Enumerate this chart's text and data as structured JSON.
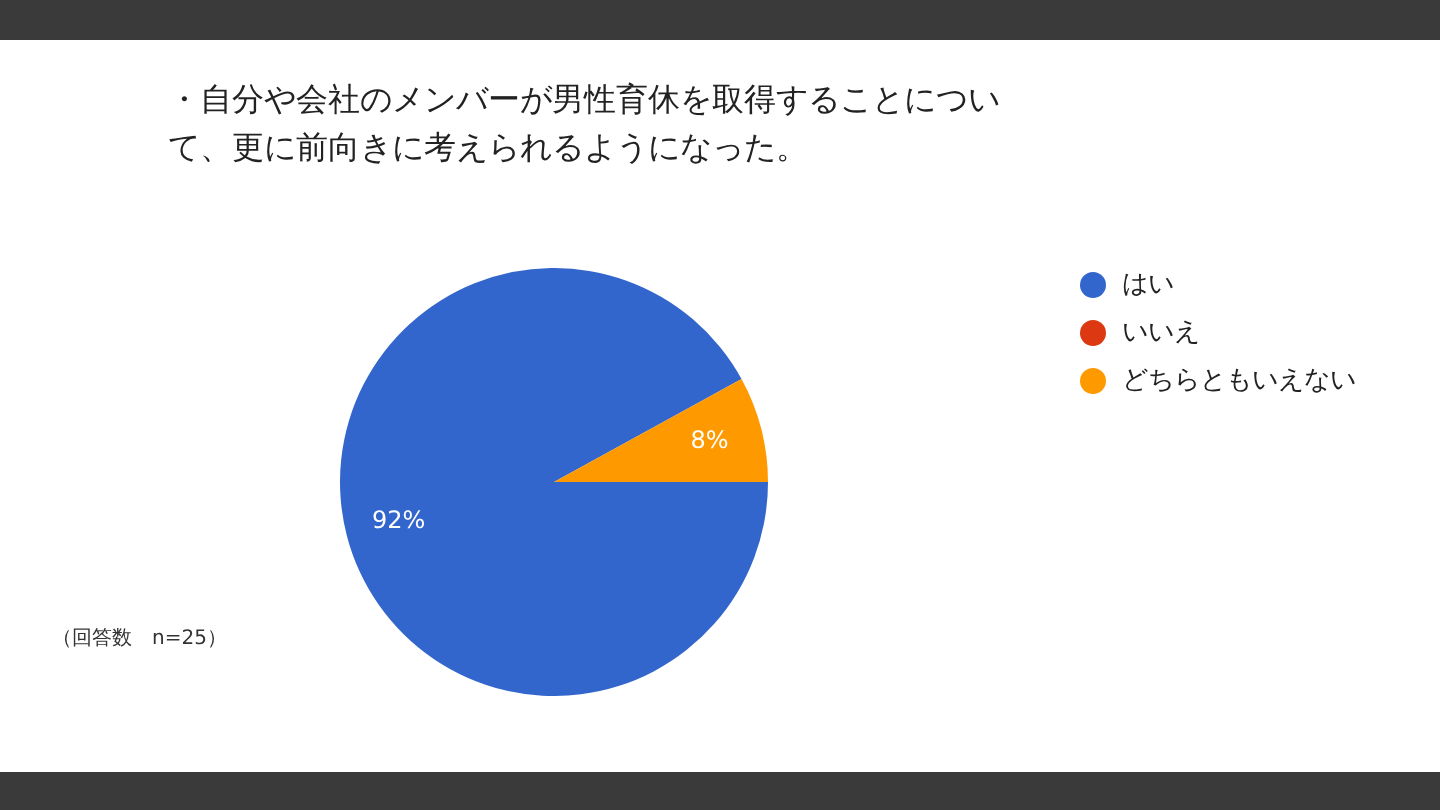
{
  "chart_data": {
    "type": "pie",
    "title": "・自分や会社のメンバーが男性育休を取得することについて、更に前向きに考えられるようになった。",
    "categories": [
      "はい",
      "いいえ",
      "どちらともいえない"
    ],
    "values": [
      92,
      0,
      8
    ],
    "colors": [
      "#3366cc",
      "#dc3912",
      "#ff9900"
    ],
    "value_labels": [
      "92%",
      null,
      "8%"
    ],
    "legend": "right",
    "annotations": [
      "（回答数　n=25）"
    ]
  }
}
